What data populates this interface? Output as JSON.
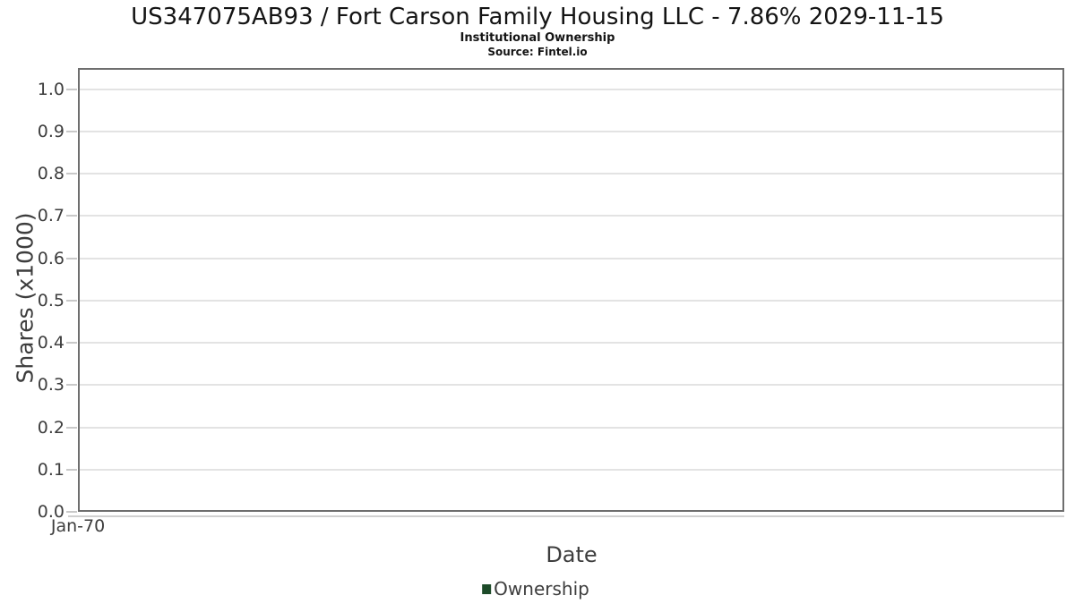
{
  "chart_data": {
    "type": "line",
    "title": "US347075AB93 / Fort Carson Family Housing LLC - 7.86% 2029-11-15",
    "subtitle": "Institutional Ownership",
    "source": "Source: Fintel.io",
    "xlabel": "Date",
    "ylabel": "Shares (x1000)",
    "xticks": [
      "Jan-70"
    ],
    "yticks": [
      0.0,
      0.1,
      0.2,
      0.3,
      0.4,
      0.5,
      0.6,
      0.7,
      0.8,
      0.9,
      1.0
    ],
    "ylim": [
      0.0,
      1.05
    ],
    "grid": "horizontal",
    "legend_position": "bottom",
    "series": [
      {
        "name": "Ownership",
        "color": "#1d4b29",
        "x": [],
        "values": []
      }
    ]
  }
}
